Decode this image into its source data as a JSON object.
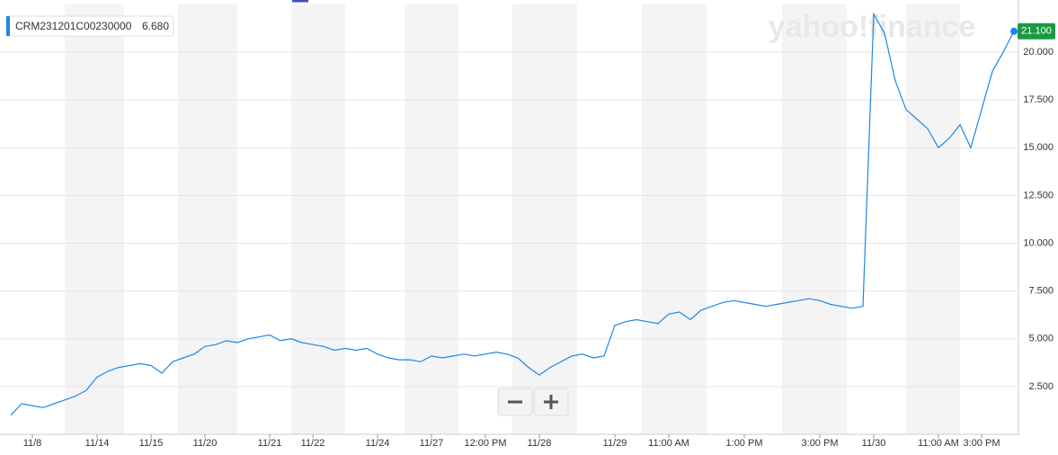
{
  "chart_data": {
    "type": "line",
    "watermark": "yahoo!finance",
    "categories": [
      null,
      null,
      "11/8",
      null,
      null,
      null,
      null,
      null,
      "11/14",
      null,
      null,
      null,
      null,
      "11/15",
      null,
      null,
      null,
      null,
      "11/20",
      null,
      null,
      null,
      null,
      null,
      "11/21",
      null,
      null,
      null,
      "11/22",
      null,
      null,
      null,
      null,
      null,
      "11/24",
      null,
      null,
      null,
      null,
      "11/27",
      null,
      null,
      null,
      null,
      "12:00 PM",
      null,
      null,
      null,
      null,
      "11/28",
      null,
      null,
      null,
      null,
      null,
      null,
      "11/29",
      null,
      null,
      null,
      null,
      "11:00 AM",
      null,
      null,
      null,
      null,
      null,
      null,
      "1:00 PM",
      null,
      null,
      null,
      null,
      null,
      null,
      "3:00 PM",
      null,
      null,
      null,
      null,
      "11/30",
      null,
      null,
      null,
      null,
      null,
      "11:00 AM",
      null,
      null,
      null,
      "3:00 PM",
      null,
      null,
      null
    ],
    "series": [
      {
        "name": "CRM231201C00230000",
        "color": "#1e88e5",
        "reference_value": {
          "value": 6.68,
          "label": "6.680"
        },
        "values": [
          1.0,
          1.6,
          1.5,
          1.4,
          1.6,
          1.8,
          2.0,
          2.3,
          3.0,
          3.3,
          3.5,
          3.6,
          3.7,
          3.6,
          3.2,
          3.8,
          4.0,
          4.2,
          4.6,
          4.7,
          4.9,
          4.8,
          5.0,
          5.1,
          5.2,
          4.9,
          5.0,
          4.8,
          4.7,
          4.6,
          4.4,
          4.5,
          4.4,
          4.5,
          4.2,
          4.0,
          3.9,
          3.9,
          3.8,
          4.1,
          4.0,
          4.1,
          4.2,
          4.1,
          4.2,
          4.3,
          4.2,
          4.0,
          3.5,
          3.1,
          3.5,
          3.8,
          4.1,
          4.2,
          4.0,
          4.1,
          5.7,
          5.9,
          6.0,
          5.9,
          5.8,
          6.3,
          6.4,
          6.0,
          6.5,
          6.7,
          6.9,
          7.0,
          6.9,
          6.8,
          6.7,
          6.8,
          6.9,
          7.0,
          7.1,
          7.0,
          6.8,
          6.7,
          6.6,
          6.7,
          22.0,
          21.0,
          18.5,
          17.0,
          16.5,
          16.0,
          15.0,
          15.5,
          16.2,
          15.0,
          17.0,
          19.0,
          20.0,
          21.1
        ],
        "value_labels": [
          null,
          null,
          null,
          null,
          null,
          null,
          null,
          null,
          null,
          null,
          null,
          null,
          null,
          null,
          null,
          null,
          null,
          null,
          null,
          null,
          null,
          null,
          null,
          null,
          null,
          null,
          null,
          null,
          null,
          null,
          null,
          null,
          null,
          null,
          null,
          null,
          null,
          null,
          null,
          null,
          null,
          null,
          null,
          null,
          null,
          null,
          null,
          null,
          null,
          null,
          null,
          null,
          null,
          null,
          null,
          null,
          null,
          null,
          null,
          null,
          null,
          null,
          null,
          null,
          null,
          null,
          null,
          null,
          null,
          null,
          null,
          null,
          null,
          null,
          null,
          null,
          null,
          null,
          null,
          null,
          null,
          null,
          null,
          null,
          null,
          null,
          null,
          null,
          null,
          null,
          null,
          null,
          null,
          "21.100"
        ]
      }
    ],
    "ylim": [
      0,
      22.5
    ],
    "yticks": [
      {
        "value": 2.5,
        "label": "2.500"
      },
      {
        "value": 5,
        "label": "5.000"
      },
      {
        "value": 7.5,
        "label": "7.500"
      },
      {
        "value": 10,
        "label": "10.000"
      },
      {
        "value": 12.5,
        "label": "12.500"
      },
      {
        "value": 15,
        "label": "15.000"
      },
      {
        "value": 17.5,
        "label": "17.500"
      },
      {
        "value": 20,
        "label": "20.000"
      }
    ],
    "grid": true
  }
}
